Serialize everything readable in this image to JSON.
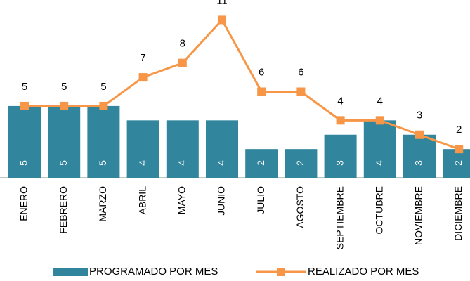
{
  "chart_data": {
    "type": "bar",
    "categories": [
      "ENERO",
      "FEBRERO",
      "MARZO",
      "ABRIL",
      "MAYO",
      "JUNIO",
      "JULIO",
      "AGOSTO",
      "SEPTIEMBRE",
      "OCTUBRE",
      "NOVIEMBRE",
      "DICIEMBRE"
    ],
    "series": [
      {
        "name": "PROGRAMADO POR MES",
        "type": "bar",
        "color": "#31859c",
        "values": [
          5,
          5,
          5,
          4,
          4,
          4,
          2,
          2,
          3,
          4,
          3,
          2
        ]
      },
      {
        "name": "REALIZADO POR MES",
        "type": "line",
        "color": "#f79646",
        "values": [
          5,
          5,
          5,
          7,
          8,
          11,
          6,
          6,
          4,
          4,
          3,
          2
        ]
      }
    ],
    "ylim": [
      0,
      12
    ],
    "legend": "bottom"
  }
}
